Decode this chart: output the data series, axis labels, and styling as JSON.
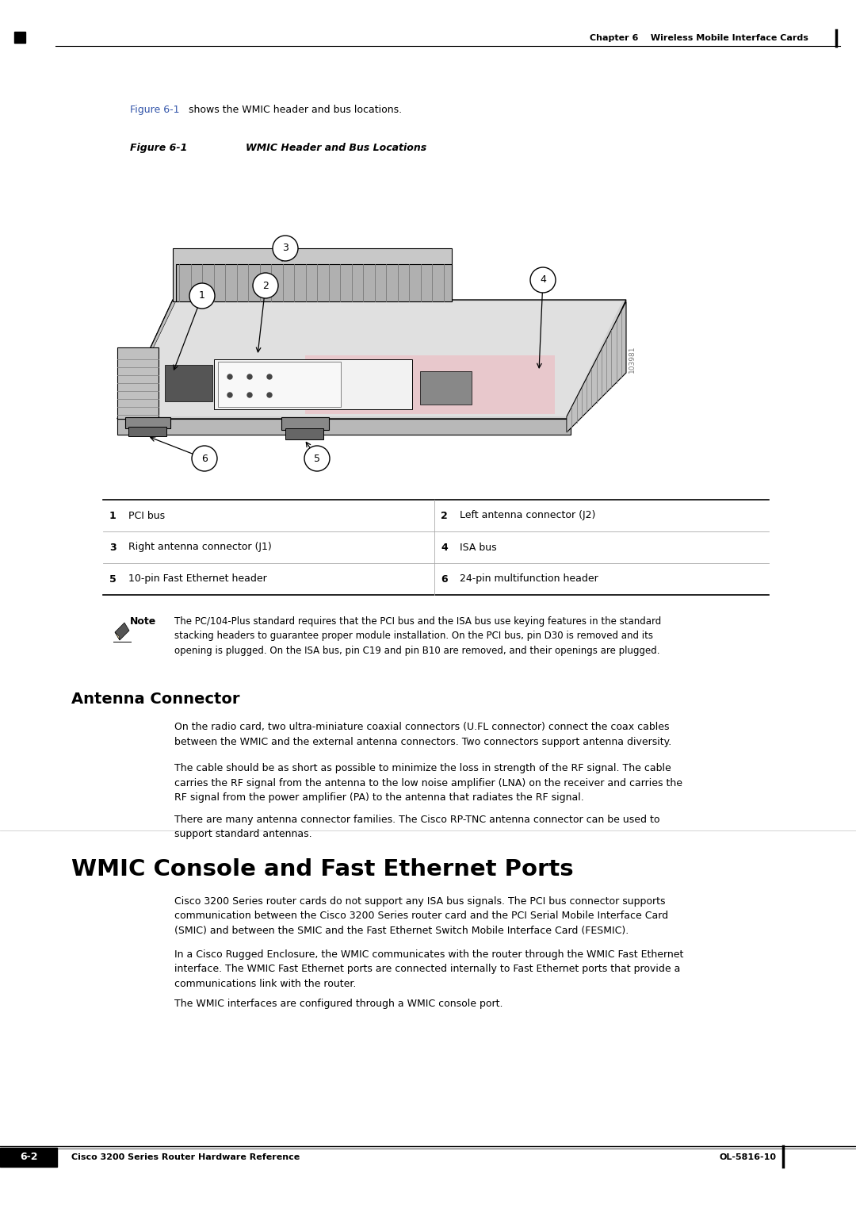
{
  "page_bg": "#ffffff",
  "header_text": "Chapter 6    Wireless Mobile Interface Cards",
  "page_number_box": "6-2",
  "page_number_right": "OL-5816-10",
  "footer_ref": "Cisco 3200 Series Router Hardware Reference",
  "intro_text_blue": "Figure 6-1",
  "intro_text_black": " shows the WMIC header and bus locations.",
  "figure_label": "Figure 6-1",
  "figure_title": "WMIC Header and Bus Locations",
  "table_rows": [
    {
      "num1": "1",
      "label1": "PCI bus",
      "num2": "2",
      "label2": "Left antenna connector (J2)"
    },
    {
      "num1": "3",
      "label1": "Right antenna connector (J1)",
      "num2": "4",
      "label2": "ISA bus"
    },
    {
      "num1": "5",
      "label1": "10-pin Fast Ethernet header",
      "num2": "6",
      "label2": "24-pin multifunction header"
    }
  ],
  "note_label": "Note",
  "note_text": "The PC/104-Plus standard requires that the PCI bus and the ISA bus use keying features in the standard\nstacking headers to guarantee proper module installation. On the PCI bus, pin D30 is removed and its\nopening is plugged. On the ISA bus, pin C19 and pin B10 are removed, and their openings are plugged.",
  "section_title": "Antenna Connector",
  "antenna_para1": "On the radio card, two ultra-miniature coaxial connectors (U.FL connector) connect the coax cables\nbetween the WMIC and the external antenna connectors. Two connectors support antenna diversity.",
  "antenna_para2": "The cable should be as short as possible to minimize the loss in strength of the RF signal. The cable\ncarries the RF signal from the antenna to the low noise amplifier (LNA) on the receiver and carries the\nRF signal from the power amplifier (PA) to the antenna that radiates the RF signal.",
  "antenna_para3": "There are many antenna connector families. The Cisco RP-TNC antenna connector can be used to\nsupport standard antennas.",
  "main_title": "WMIC Console and Fast Ethernet Ports",
  "wmic_para1": "Cisco 3200 Series router cards do not support any ISA bus signals. The PCI bus connector supports\ncommunication between the Cisco 3200 Series router card and the PCI Serial Mobile Interface Card\n(SMIC) and between the SMIC and the Fast Ethernet Switch Mobile Interface Card (FESMIC).",
  "wmic_para2": "In a Cisco Rugged Enclosure, the WMIC communicates with the router through the WMIC Fast Ethernet\ninterface. The WMIC Fast Ethernet ports are connected internally to Fast Ethernet ports that provide a\ncommunications link with the router.",
  "wmic_para3": "The WMIC interfaces are configured through a WMIC console port.",
  "link_color": "#3355aa",
  "section_title_color": "#000000",
  "watermark": "103981"
}
